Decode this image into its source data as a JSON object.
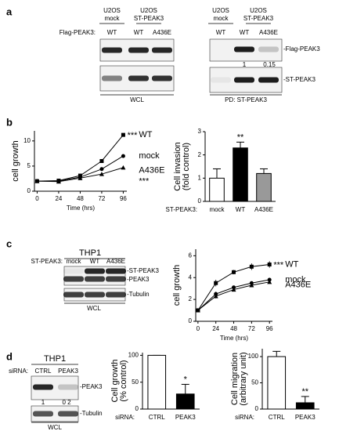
{
  "panel_labels": [
    "a",
    "b",
    "c",
    "d"
  ],
  "blots": [
    {
      "groups": [
        [
          "U2OS",
          "mock"
        ],
        [
          "U2OS",
          "ST-PEAK3"
        ]
      ],
      "row_label": "Flag-PEAK3:",
      "lanes": [
        "WT",
        "WT",
        "A436E"
      ],
      "footer": "WCL"
    },
    {
      "groups": [
        [
          "U2OS",
          "mock"
        ],
        [
          "U2OS",
          "ST-PEAK3"
        ]
      ],
      "lanes": [
        "WT",
        "WT",
        "A436E"
      ],
      "band_labels": [
        "-Flag-PEAK3",
        "-ST-PEAK3"
      ],
      "quant": [
        "1",
        "0.15"
      ],
      "footer": "PD: ST-PEAK3"
    },
    {
      "title": "THP1",
      "row_label": "ST-PEAK3:",
      "lanes": [
        "mock",
        "WT",
        "A436E"
      ],
      "band_labels": [
        "-ST-PEAK3",
        "-PEAK3",
        "-Tubulin"
      ],
      "footer": "WCL"
    },
    {
      "title": "THP1",
      "row_label": "siRNA:",
      "lanes": [
        "CTRL",
        "PEAK3"
      ],
      "band_labels": [
        "-PEAK3",
        "-Tubulin"
      ],
      "quant": [
        "1",
        "0 2"
      ],
      "footer": "WCL"
    }
  ],
  "chart_data": [
    {
      "type": "line",
      "xlabel": "Time (hrs)",
      "ylabel": [
        "cell growth"
      ],
      "x": [
        0,
        24,
        48,
        72,
        96
      ],
      "xlim": [
        -3,
        100
      ],
      "xticks": [
        0,
        24,
        48,
        72,
        96
      ],
      "ylim": [
        0,
        12
      ],
      "yticks": [
        0,
        5,
        10
      ],
      "series": [
        {
          "name": "WT",
          "color": "#000000",
          "marker": "square",
          "significance": "***",
          "values": [
            2,
            2.1,
            3.1,
            6,
            11.2
          ]
        },
        {
          "name": "mock",
          "color": "#000000",
          "marker": "circle",
          "values": [
            2,
            2,
            2.8,
            4.4,
            7
          ]
        },
        {
          "name": "A436E",
          "color": "#000000",
          "marker": "triangle",
          "significance": "***",
          "values": [
            2,
            1.9,
            2.6,
            3.4,
            4.7
          ]
        }
      ]
    },
    {
      "type": "bar",
      "xlabel": "ST-PEAK3:",
      "ylabel": [
        "Cell invasion",
        "(fold control)"
      ],
      "categories": [
        "mock",
        "WT",
        "A436E"
      ],
      "values": [
        1,
        2.3,
        1.2
      ],
      "errors": [
        0.4,
        0.25,
        0.2
      ],
      "colors": [
        "#ffffff",
        "#000000",
        "#999999"
      ],
      "significance": [
        null,
        "**",
        null
      ],
      "ylim": [
        0,
        3
      ],
      "yticks": [
        0,
        1,
        2,
        3
      ]
    },
    {
      "type": "line",
      "xlabel": "Time (hrs)",
      "ylabel": [
        "cell growth"
      ],
      "x": [
        0,
        24,
        48,
        72,
        96
      ],
      "xlim": [
        -3,
        100
      ],
      "xticks": [
        0,
        24,
        48,
        72,
        96
      ],
      "ylim": [
        0,
        6.6
      ],
      "yticks": [
        0,
        2,
        4,
        6
      ],
      "series": [
        {
          "name": "WT",
          "color": "#000000",
          "marker": "square",
          "significance": "***",
          "values": [
            1,
            3.5,
            4.5,
            5,
            5.2
          ],
          "errors": [
            0.1,
            0.3,
            0.2,
            0.3,
            0.3
          ]
        },
        {
          "name": "mock",
          "color": "#000000",
          "marker": "circle",
          "values": [
            1,
            2.5,
            3.1,
            3.5,
            3.8
          ],
          "errors": [
            0.1,
            0.2,
            0.15,
            0.15,
            0.15
          ]
        },
        {
          "name": "A436E",
          "color": "#000000",
          "marker": "triangle",
          "values": [
            1,
            2.3,
            2.9,
            3.3,
            3.6
          ],
          "errors": [
            0.1,
            0.2,
            0.15,
            0.15,
            0.15
          ]
        }
      ]
    },
    {
      "type": "bar",
      "xlabel": "siRNA:",
      "ylabel": [
        "Cell growth",
        "(% control)"
      ],
      "categories": [
        "CTRL",
        "PEAK3"
      ],
      "values": [
        100,
        28
      ],
      "errors": [
        0,
        18
      ],
      "colors": [
        "#ffffff",
        "#000000"
      ],
      "significance": [
        null,
        "*"
      ],
      "ylim": [
        0,
        105
      ],
      "yticks": [
        0,
        50,
        100
      ]
    },
    {
      "type": "bar",
      "xlabel": "siRNA:",
      "ylabel": [
        "Cell migration",
        "(arbitrary unit)"
      ],
      "categories": [
        "CTRL",
        "PEAK3"
      ],
      "values": [
        100,
        12
      ],
      "errors": [
        10,
        12
      ],
      "colors": [
        "#ffffff",
        "#000000"
      ],
      "significance": [
        null,
        "**"
      ],
      "ylim": [
        0,
        115
      ],
      "yticks": [
        0,
        50,
        100
      ]
    }
  ]
}
